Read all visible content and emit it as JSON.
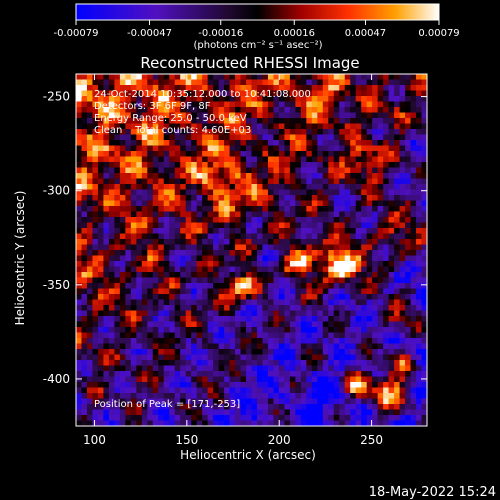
{
  "chart_data": {
    "type": "heatmap",
    "title": "Reconstructed RHESSI Image",
    "xlabel": "Heliocentric X (arcsec)",
    "ylabel": "Heliocentric Y (arcsec)",
    "xlim": [
      90,
      280
    ],
    "ylim": [
      -425,
      -238
    ],
    "x_ticks": [
      100,
      150,
      200,
      250
    ],
    "y_ticks": [
      -250,
      -300,
      -350,
      -400
    ],
    "colorbar": {
      "ticks": [
        "-0.00079",
        "-0.00047",
        "-0.00016",
        "0.00016",
        "0.00047",
        "0.00079"
      ],
      "units_label": "(photons cm⁻² s⁻¹ asec⁻²)",
      "range": [
        -0.00079,
        0.00079
      ]
    },
    "annotations": [
      "24-Oct-2014 10:35:12.000 to 10:41:08.000",
      "Detectors: 3F 6F 9F, 8F",
      "Energy Range: 25.0 - 50.0 keV",
      "Clean    Total counts: 4.60E+03"
    ],
    "peak_label": "Position of Peak = [171,-253]",
    "timestamp": "18-May-2022 15:24"
  }
}
